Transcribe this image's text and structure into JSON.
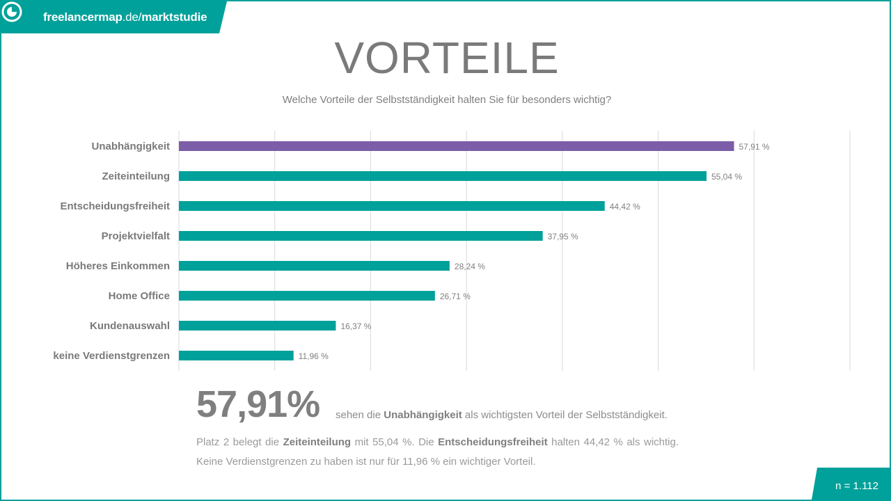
{
  "brand": {
    "name_part": "freelancermap",
    "domain_part": ".de/",
    "section_part": "marktstudie",
    "color": "#00a19a",
    "icon": "freelancermap-logo-icon"
  },
  "header": {
    "title": "VORTEILE",
    "subtitle": "Welche Vorteile der Selbstständigkeit halten Sie für besonders wichtig?"
  },
  "chart_data": {
    "type": "bar",
    "orientation": "horizontal",
    "categories": [
      "Unabhängigkeit",
      "Zeiteinteilung",
      "Entscheidungsfreiheit",
      "Projektvielfalt",
      "Höheres Einkommen",
      "Home Office",
      "Kundenauswahl",
      "keine Verdienstgrenzen"
    ],
    "values": [
      57.91,
      55.04,
      44.42,
      37.95,
      28.24,
      26.71,
      16.37,
      11.96
    ],
    "value_labels": [
      "57,91 %",
      "55,04 %",
      "44,42 %",
      "37,95 %",
      "28,24 %",
      "26,71 %",
      "16,37 %",
      "11,96 %"
    ],
    "xlim": [
      0,
      70
    ],
    "grid": true,
    "unit": "%",
    "colors": {
      "highlight": "#7b5ea7",
      "default": "#00a19a"
    }
  },
  "summary": {
    "big_value": "57,91%",
    "lead_pre": "sehen die",
    "lead_bold": "Unabhängigkeit",
    "lead_post": "als wichtigsten Vorteil der Selbstständigkeit.",
    "p_1": "Platz 2 belegt die",
    "p_b1": "Zeiteinteilung",
    "p_2": "mit 55,04 %. Die",
    "p_b2": "Entscheidungsfreiheit",
    "p_3": "halten 44,42 % als wichtig. Keine Verdienstgrenzen zu haben ist nur für 11,96 % ein wichtiger Vorteil."
  },
  "footer": {
    "n_label": "n = 1.112"
  }
}
